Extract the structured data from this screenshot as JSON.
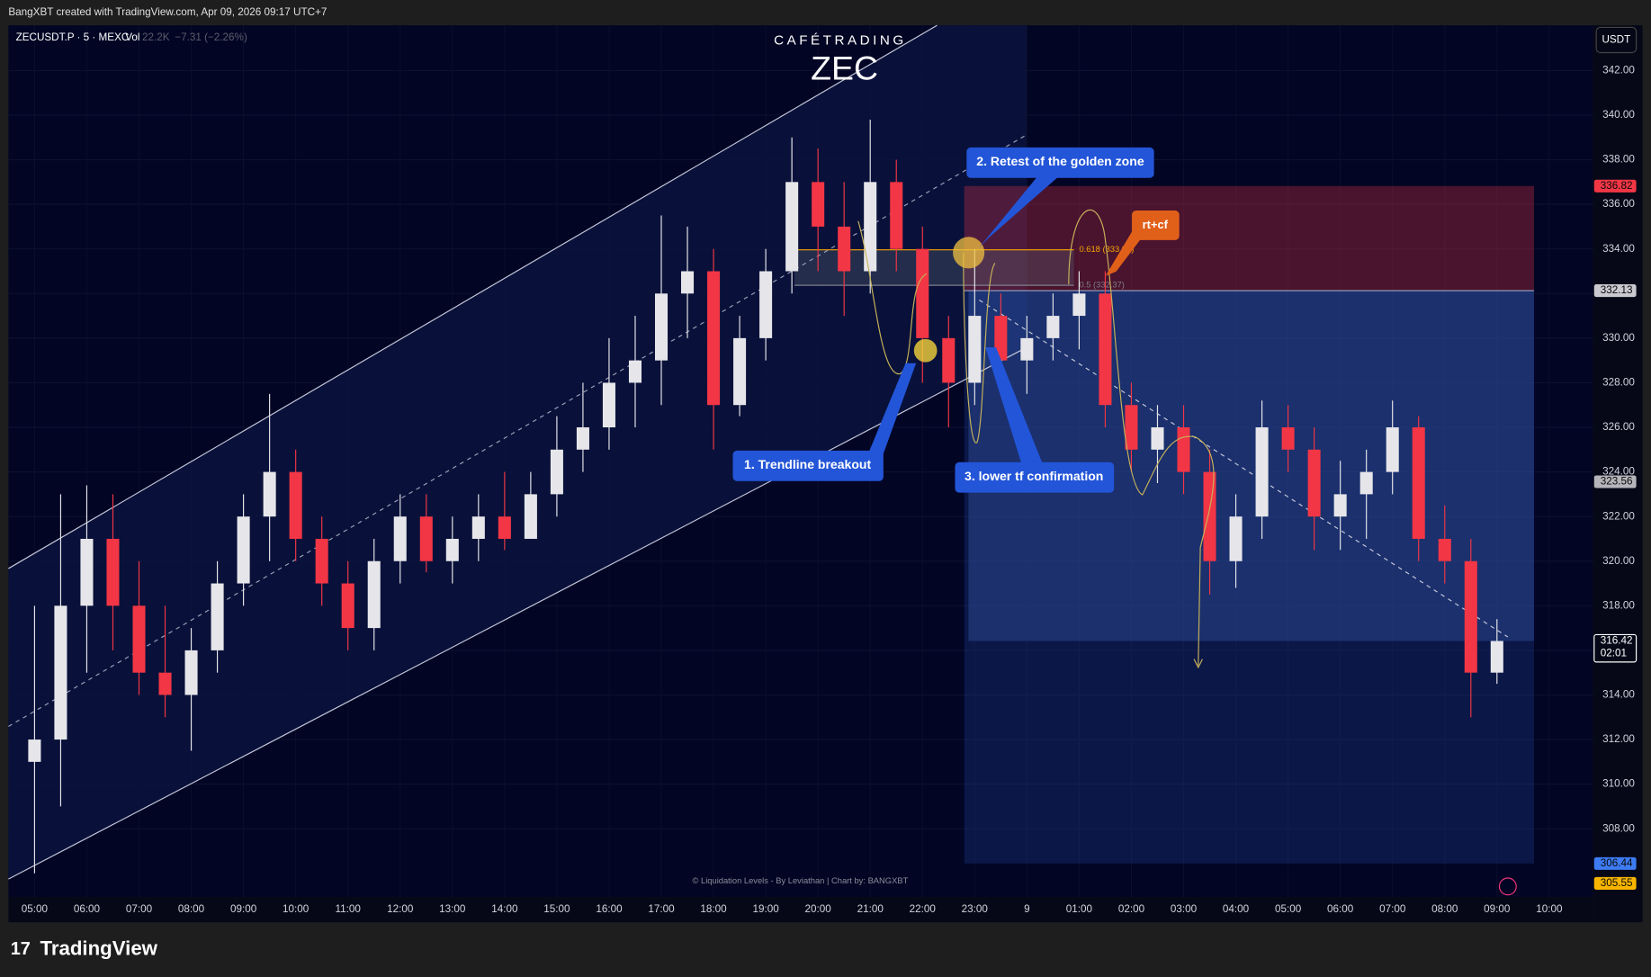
{
  "header": {
    "credit": "BangXBT created with TradingView.com, Apr 09, 2026 09:17 UTC+7",
    "brand": "TradingView"
  },
  "chart_data": {
    "type": "candlestick",
    "title": "ZEC",
    "subtitle": "CAFÉTRADING",
    "symbol": "ZECUSDT.P · 5 · MEXC",
    "volume_label": "Vol",
    "volume": "22.2K",
    "change": "−7.31 (−2.26%)",
    "currency": "USDT",
    "footer_note": "© Liquidation Levels - By Leviathan | Chart by: BANGXBT",
    "up_color": "#e6e6ea",
    "down_color": "#f23645",
    "x": [
      5,
      5.5,
      6,
      6.5,
      7,
      7.5,
      8,
      8.5,
      9,
      9.5,
      10,
      10.5,
      11,
      11.5,
      12,
      12.5,
      13,
      13.5,
      14,
      14.5,
      15,
      15.5,
      16,
      16.5,
      17,
      17.5,
      18,
      18.5,
      19,
      19.5,
      20,
      20.5,
      21,
      21.5,
      22,
      22.5,
      23,
      23.5,
      24,
      24.5,
      25,
      25.5,
      26,
      26.5,
      27,
      27.5,
      28,
      28.5,
      29,
      29.5,
      30,
      30.5,
      31,
      31.5,
      32,
      32.5,
      33
    ],
    "open": [
      311,
      312,
      318,
      321,
      318,
      315,
      314,
      316,
      319,
      322,
      324,
      321,
      319,
      317,
      320,
      322,
      320,
      321,
      322,
      321,
      323,
      325,
      326,
      328,
      329,
      332,
      333,
      327,
      330,
      333,
      337,
      335,
      333,
      337,
      334,
      330,
      328,
      331,
      329,
      330,
      331,
      332,
      327,
      325,
      326,
      324,
      320,
      322,
      326,
      325,
      322,
      323,
      324,
      326,
      321,
      320,
      315
    ],
    "high": [
      318,
      323,
      323.4,
      323,
      320,
      318,
      317,
      320,
      323,
      327.5,
      325,
      322,
      320,
      321,
      323,
      323,
      322,
      323,
      324,
      324,
      326.5,
      328,
      330,
      331,
      335.5,
      335,
      334,
      331,
      334,
      339,
      338.5,
      337,
      339.8,
      338,
      335,
      331,
      334,
      332,
      331,
      332,
      333,
      333,
      328,
      327,
      327,
      325,
      323,
      327.2,
      327,
      326,
      324.5,
      325,
      327.2,
      326.5,
      322.5,
      321,
      317.4
    ],
    "low": [
      306,
      309,
      315,
      316,
      314,
      313,
      311.5,
      315,
      318,
      320,
      320,
      318,
      316,
      316,
      319,
      319.5,
      319,
      320,
      320.5,
      321,
      322,
      324,
      325,
      326,
      327,
      330,
      325,
      326.5,
      329,
      332,
      333,
      331,
      332,
      333,
      328,
      326,
      327,
      328,
      327.5,
      329,
      329.5,
      326,
      324,
      323.5,
      323,
      318.5,
      318.8,
      321,
      324,
      320.5,
      320.5,
      321,
      323,
      320,
      319,
      313,
      314.5
    ],
    "close": [
      312,
      318,
      321,
      318,
      315,
      314,
      316,
      319,
      322,
      324,
      321,
      319,
      317,
      320,
      322,
      320,
      321,
      322,
      321,
      323,
      325,
      326,
      328,
      329,
      332,
      333,
      327,
      330,
      333,
      337,
      335,
      333,
      337,
      334,
      330,
      328,
      331,
      329,
      330,
      331,
      332,
      327,
      325,
      326,
      324,
      320,
      322,
      326,
      325,
      322,
      323,
      324,
      326,
      321,
      320,
      315,
      316.42
    ],
    "xlim": [
      4.5,
      34.84
    ],
    "ylim": [
      304.94,
      344.03
    ],
    "xticks": [
      {
        "value": 5,
        "label": "05:00"
      },
      {
        "value": 6,
        "label": "06:00"
      },
      {
        "value": 7,
        "label": "07:00"
      },
      {
        "value": 8,
        "label": "08:00"
      },
      {
        "value": 9,
        "label": "09:00"
      },
      {
        "value": 10,
        "label": "10:00"
      },
      {
        "value": 11,
        "label": "11:00"
      },
      {
        "value": 12,
        "label": "12:00"
      },
      {
        "value": 13,
        "label": "13:00"
      },
      {
        "value": 14,
        "label": "14:00"
      },
      {
        "value": 15,
        "label": "15:00"
      },
      {
        "value": 16,
        "label": "16:00"
      },
      {
        "value": 17,
        "label": "17:00"
      },
      {
        "value": 18,
        "label": "18:00"
      },
      {
        "value": 19,
        "label": "19:00"
      },
      {
        "value": 20,
        "label": "20:00"
      },
      {
        "value": 21,
        "label": "21:00"
      },
      {
        "value": 22,
        "label": "22:00"
      },
      {
        "value": 23,
        "label": "23:00"
      },
      {
        "value": 24,
        "label": "9"
      },
      {
        "value": 25,
        "label": "01:00"
      },
      {
        "value": 26,
        "label": "02:00"
      },
      {
        "value": 27,
        "label": "03:00"
      },
      {
        "value": 28,
        "label": "04:00"
      },
      {
        "value": 29,
        "label": "05:00"
      },
      {
        "value": 30,
        "label": "06:00"
      },
      {
        "value": 31,
        "label": "07:00"
      },
      {
        "value": 32,
        "label": "08:00"
      },
      {
        "value": 33,
        "label": "09:00"
      },
      {
        "value": 34,
        "label": "10:00"
      }
    ],
    "yticks": [
      {
        "value": 308,
        "label": "308.00"
      },
      {
        "value": 310,
        "label": "310.00"
      },
      {
        "value": 312,
        "label": "312.00"
      },
      {
        "value": 314,
        "label": "314.00"
      },
      {
        "value": 316,
        "label": "316.00"
      },
      {
        "value": 318,
        "label": "318.00"
      },
      {
        "value": 320,
        "label": "320.00"
      },
      {
        "value": 322,
        "label": "322.00"
      },
      {
        "value": 324,
        "label": "324.00"
      },
      {
        "value": 326,
        "label": "326.00"
      },
      {
        "value": 328,
        "label": "328.00"
      },
      {
        "value": 330,
        "label": "330.00"
      },
      {
        "value": 332,
        "label": "332.00"
      },
      {
        "value": 334,
        "label": "334.00"
      },
      {
        "value": 336,
        "label": "336.00"
      },
      {
        "value": 338,
        "label": "338.00"
      },
      {
        "value": 340,
        "label": "340.00"
      },
      {
        "value": 342,
        "label": "342.00"
      }
    ],
    "position": {
      "stop": 336.82,
      "entry": 332.13,
      "target": 306.44,
      "x": [
        22.8,
        33.71
      ]
    },
    "fib": {
      "levels": [
        333.96,
        332.37
      ],
      "labels": [
        "0.618 (333.96)",
        "0.5 (332.37)"
      ],
      "colors": [
        "#f7a600",
        "#7d7f8c"
      ],
      "x": [
        19.55,
        24.9
      ]
    },
    "price_labels": [
      {
        "value": 336.82,
        "color": "#f23645"
      },
      {
        "value": 332.13,
        "color": "#c9c9cf"
      },
      {
        "value": 323.56,
        "color": "#b5b5bb"
      },
      {
        "value": 316.42,
        "color": "#ffffff"
      },
      {
        "value": 306.44,
        "color": "#3d7bf2"
      },
      {
        "value": 305.55,
        "color": "#f7b500"
      }
    ],
    "countdown": "02:01",
    "annotations": [
      "1. Trendline breakout",
      "2. Retest of the golden zone",
      "3. lower tf confirmation",
      "rt+cf"
    ]
  }
}
